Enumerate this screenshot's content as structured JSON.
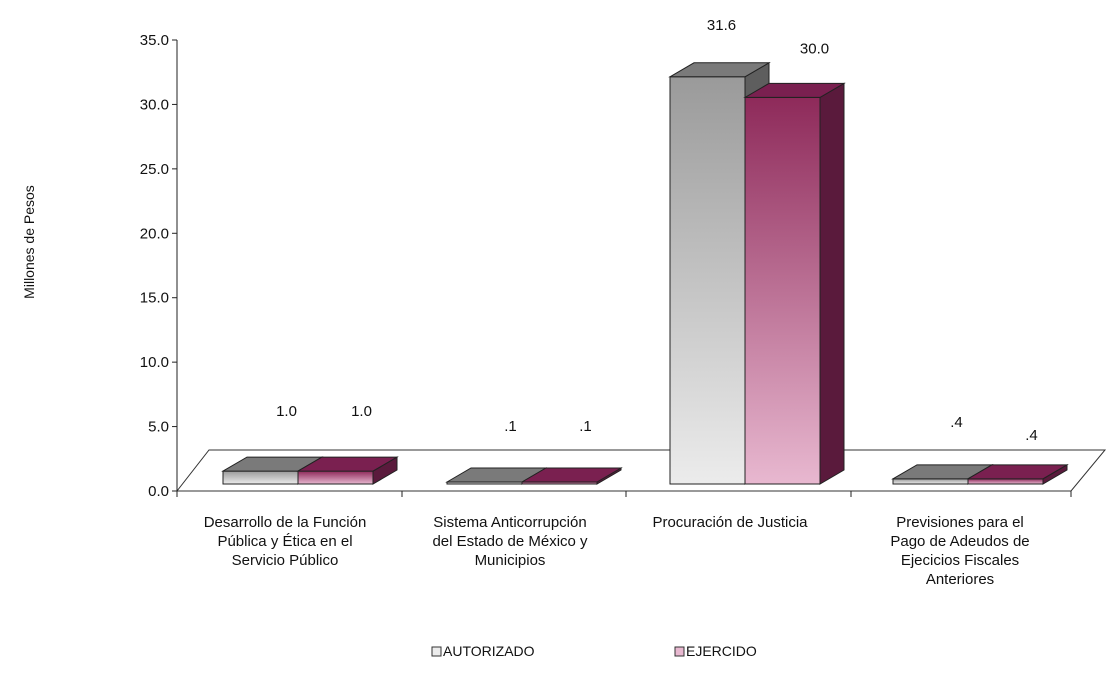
{
  "chart_data": {
    "type": "bar",
    "style": "3d-clustered-column",
    "title": "",
    "xlabel": "",
    "ylabel": "Millones de Pesos",
    "ylim": [
      0,
      35
    ],
    "yticks": [
      "0.0",
      "5.0",
      "10.0",
      "15.0",
      "20.0",
      "25.0",
      "30.0",
      "35.0"
    ],
    "grid": false,
    "legend_position": "bottom",
    "categories": [
      [
        "Desarrollo de la Función",
        "Pública y Ética en el",
        "Servicio Público"
      ],
      [
        "Sistema Anticorrupción",
        "del Estado de México y",
        "Municipios"
      ],
      [
        "Procuración de Justicia"
      ],
      [
        "Previsiones para el",
        "Pago de Adeudos de",
        "Ejecicios Fiscales",
        "Anteriores"
      ]
    ],
    "series": [
      {
        "name": "AUTORIZADO",
        "values": [
          1.0,
          0.1,
          31.6,
          0.4
        ],
        "labels": [
          "1.0",
          ".1",
          "31.6",
          ".4"
        ],
        "colors": {
          "front_top": "#9a9a9a",
          "front_bottom": "#ececec",
          "top": "#7a7a7a",
          "side": "#5e5e5e"
        }
      },
      {
        "name": "EJERCIDO",
        "values": [
          1.0,
          0.1,
          30.0,
          0.4
        ],
        "labels": [
          "1.0",
          ".1",
          "30.0",
          ".4"
        ],
        "colors": {
          "front_top": "#8e2a5a",
          "front_bottom": "#e8b8d0",
          "top": "#7a2050",
          "side": "#5a1a3c"
        }
      }
    ]
  }
}
